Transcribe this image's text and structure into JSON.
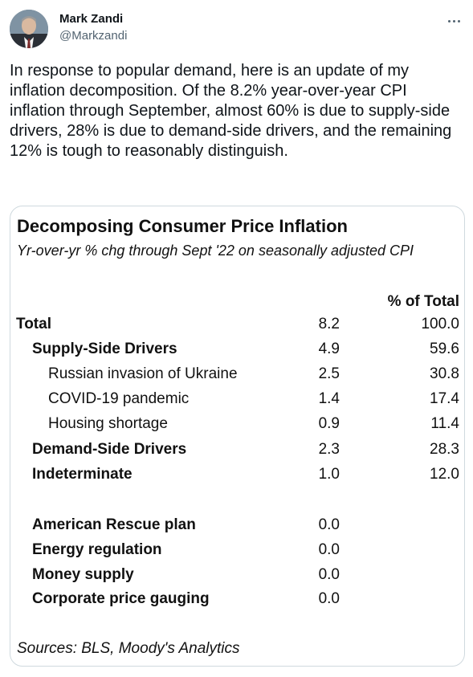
{
  "author": {
    "name": "Mark Zandi",
    "handle": "@Markzandi"
  },
  "tweet": {
    "text": "In response to popular demand, here is an update of my inflation decomposition. Of the 8.2% year-over-year CPI inflation through September, almost 60% is due to supply-side drivers, 28% is due to demand-side drivers, and the remaining 12% is tough to reasonably distinguish."
  },
  "table": {
    "title": "Decomposing Consumer Price Inflation",
    "subtitle": "Yr-over-yr % chg through Sept '22 on seasonally adjusted CPI",
    "pct_header": "% of Total",
    "rows": [
      {
        "label": "Total",
        "value": "8.2",
        "pct": "100.0"
      },
      {
        "label": "Supply-Side Drivers",
        "value": "4.9",
        "pct": "59.6"
      },
      {
        "label": "Russian invasion of Ukraine",
        "value": "2.5",
        "pct": "30.8"
      },
      {
        "label": "COVID-19 pandemic",
        "value": "1.4",
        "pct": "17.4"
      },
      {
        "label": "Housing shortage",
        "value": "0.9",
        "pct": "11.4"
      },
      {
        "label": "Demand-Side Drivers",
        "value": "2.3",
        "pct": "28.3"
      },
      {
        "label": "Indeterminate",
        "value": "1.0",
        "pct": "12.0"
      },
      {
        "label": "American Rescue plan",
        "value": "0.0",
        "pct": ""
      },
      {
        "label": "Energy regulation",
        "value": "0.0",
        "pct": ""
      },
      {
        "label": "Money supply",
        "value": "0.0",
        "pct": ""
      },
      {
        "label": "Corporate price gauging",
        "value": "0.0",
        "pct": ""
      }
    ],
    "sources": "Sources: BLS, Moody's Analytics"
  },
  "icons": {
    "more": "more-horizontal-icon"
  }
}
